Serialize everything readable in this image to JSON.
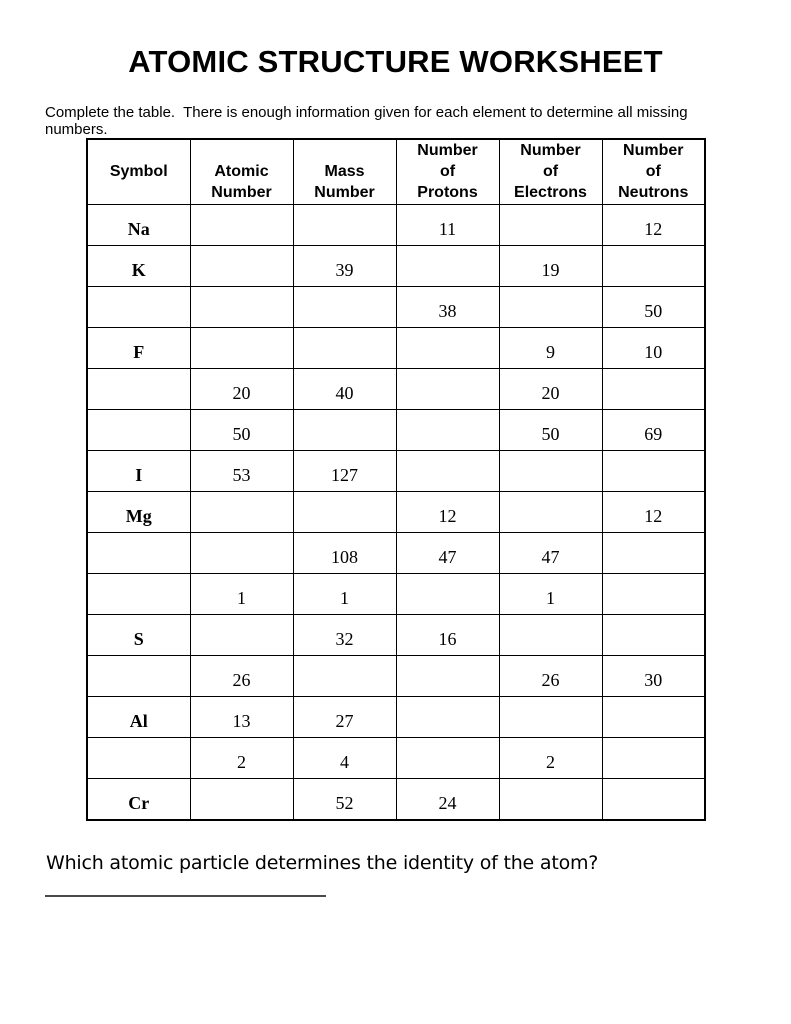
{
  "title": "ATOMIC STRUCTURE WORKSHEET",
  "instruction": "Complete the table.  There is enough information given for each element to determine all missing numbers.",
  "table": {
    "headers": [
      "Symbol",
      "Atomic\nNumber",
      "Mass\nNumber",
      "Number\nof\nProtons",
      "Number\nof\nElectrons",
      "Number\nof\nNeutrons"
    ],
    "rows": [
      [
        "Na",
        "",
        "",
        "11",
        "",
        "12"
      ],
      [
        "K",
        "",
        "39",
        "",
        "19",
        ""
      ],
      [
        "",
        "",
        "",
        "38",
        "",
        "50"
      ],
      [
        "F",
        "",
        "",
        "",
        "9",
        "10"
      ],
      [
        "",
        "20",
        "40",
        "",
        "20",
        ""
      ],
      [
        "",
        "50",
        "",
        "",
        "50",
        "69"
      ],
      [
        "I",
        "53",
        "127",
        "",
        "",
        ""
      ],
      [
        "Mg",
        "",
        "",
        "12",
        "",
        "12"
      ],
      [
        "",
        "",
        "108",
        "47",
        "47",
        ""
      ],
      [
        "",
        "1",
        "1",
        "",
        "1",
        ""
      ],
      [
        "S",
        "",
        "32",
        "16",
        "",
        ""
      ],
      [
        "",
        "26",
        "",
        "",
        "26",
        "30"
      ],
      [
        "Al",
        "13",
        "27",
        "",
        "",
        ""
      ],
      [
        "",
        "2",
        "4",
        "",
        "2",
        ""
      ],
      [
        "Cr",
        "",
        "52",
        "24",
        "",
        ""
      ]
    ]
  },
  "question": "Which atomic particle determines the identity of the atom?",
  "colors": {
    "text": "#000000",
    "table_border": "#000000",
    "answer_line": "#4a4a4a",
    "background": "#ffffff"
  }
}
